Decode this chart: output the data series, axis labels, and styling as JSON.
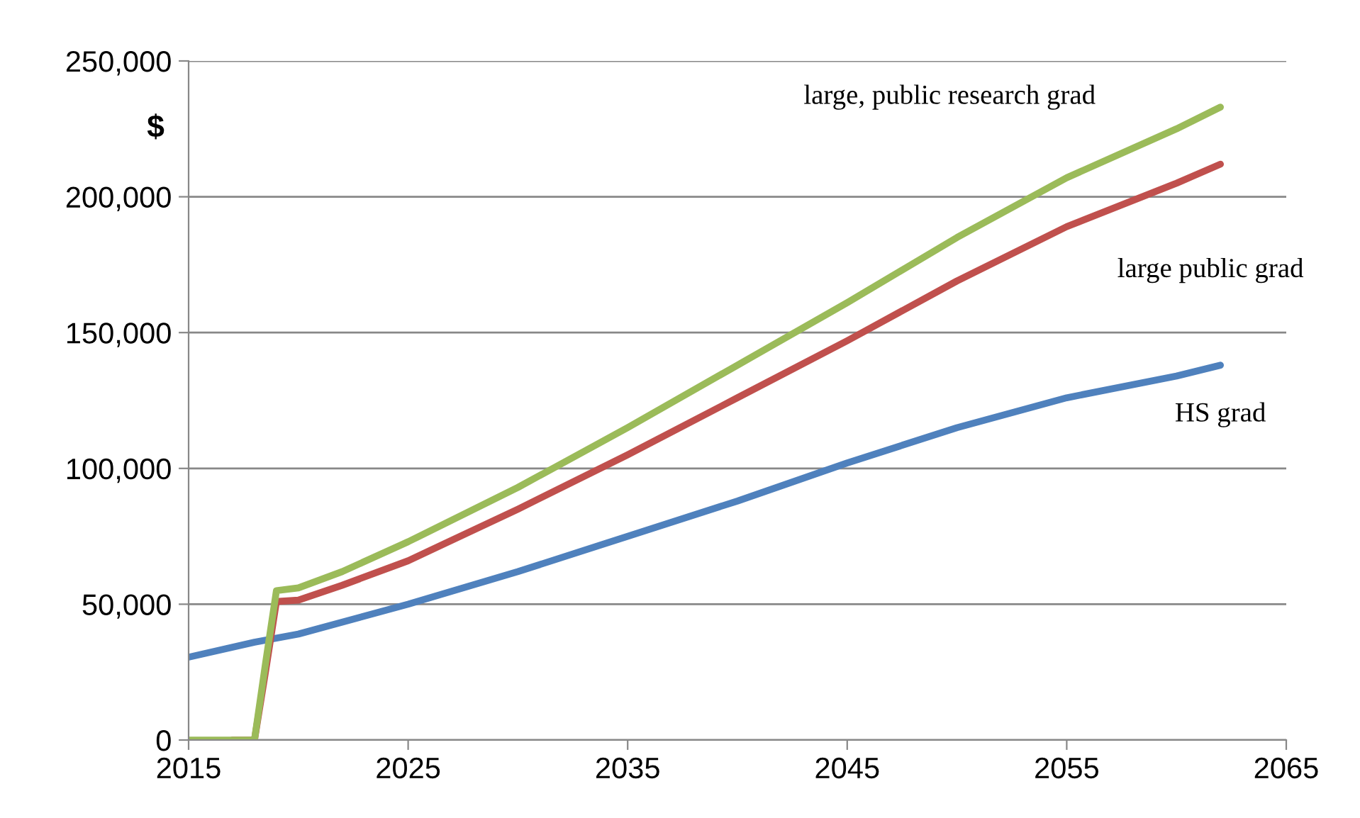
{
  "chart_data": {
    "type": "line",
    "ylabel": "$",
    "xlim": [
      2015,
      2065
    ],
    "xticks": [
      2015,
      2025,
      2035,
      2045,
      2055,
      2065
    ],
    "ylim": [
      0,
      250000
    ],
    "yticks": [
      {
        "value": 0,
        "label": "0"
      },
      {
        "value": 50000,
        "label": "50,000"
      },
      {
        "value": 100000,
        "label": "100,000"
      },
      {
        "value": 150000,
        "label": "150,000"
      },
      {
        "value": 200000,
        "label": "200,000"
      },
      {
        "value": 250000,
        "label": "250,000"
      }
    ],
    "grid": "y",
    "legend": false,
    "marker": "none",
    "line_style": "solid",
    "series": [
      {
        "name": "HS grad",
        "color": "#4f81bd",
        "x": [
          2015,
          2018,
          2020,
          2025,
          2030,
          2035,
          2040,
          2045,
          2050,
          2055,
          2060,
          2062
        ],
        "values": [
          30500,
          36000,
          39000,
          50000,
          62000,
          75000,
          88000,
          102000,
          115000,
          126000,
          134000,
          138000
        ]
      },
      {
        "name": "large public grad",
        "color": "#c0504d",
        "x": [
          2017,
          2018,
          2018.5,
          2019,
          2020,
          2022,
          2025,
          2030,
          2035,
          2040,
          2045,
          2050,
          2055,
          2060,
          2062
        ],
        "values": [
          0,
          0,
          25000,
          51000,
          51500,
          57000,
          66000,
          85000,
          105000,
          126000,
          147000,
          169000,
          189000,
          205000,
          212000
        ]
      },
      {
        "name": "large, public research grad",
        "color": "#9bbb59",
        "x": [
          2015,
          2016,
          2017,
          2018,
          2018.5,
          2019,
          2020,
          2022,
          2025,
          2030,
          2035,
          2040,
          2045,
          2050,
          2055,
          2060,
          2062
        ],
        "values": [
          0,
          0,
          0,
          0,
          28000,
          55000,
          56000,
          62000,
          73000,
          93000,
          115000,
          138000,
          161000,
          185000,
          207000,
          225000,
          233000
        ]
      }
    ]
  }
}
